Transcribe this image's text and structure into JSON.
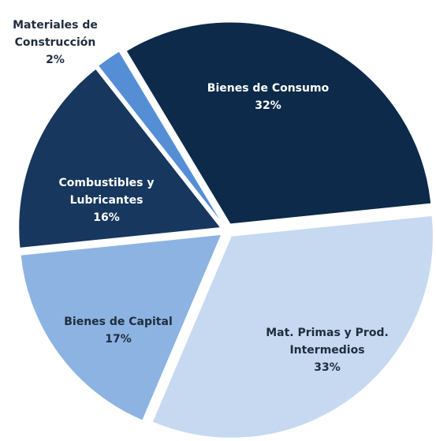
{
  "chart_data": {
    "type": "pie",
    "categories": [
      "Bienes de Consumo",
      "Mat. Primas y Prod. Intermedios",
      "Bienes de Capital",
      "Combustibles y Lubricantes",
      "Materiales de Construcción"
    ],
    "values": [
      32,
      33,
      17,
      16,
      2
    ],
    "value_labels": [
      "32%",
      "33%",
      "17%",
      "16%",
      "2%"
    ],
    "colors": [
      "#0d2a4a",
      "#c6d9f1",
      "#8db3e2",
      "#17375e",
      "#558ed5"
    ]
  }
}
